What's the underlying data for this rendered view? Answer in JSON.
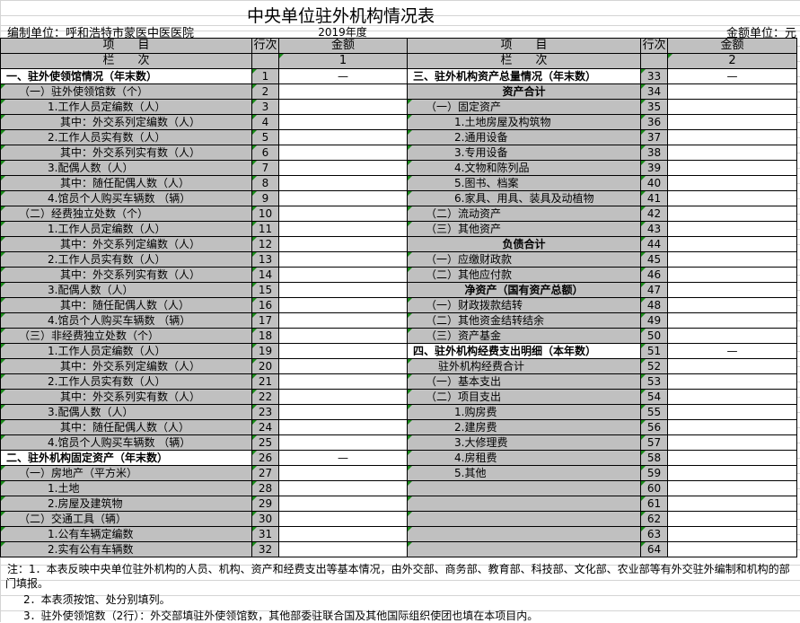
{
  "title": "中央单位驻外机构情况表",
  "compiler": "编制单位：呼和浩特市蒙医中医医院",
  "year": "2019年度",
  "money_unit": "金额单位：元",
  "header": {
    "item": "项　　目",
    "row_no": "行次",
    "amount": "金额",
    "column_label": "栏　　次",
    "left_col_no": "1",
    "right_col_no": "2"
  },
  "left_rows": [
    {
      "item": "一、驻外使领馆情况（年末数）",
      "level": 0,
      "bold": true,
      "no": "1",
      "amount": "—"
    },
    {
      "item": "（一）驻外使领馆数（个）",
      "level": 1,
      "no": "2",
      "amount": ""
    },
    {
      "item": "1.工作人员定编数（人）",
      "level": 2,
      "no": "3",
      "amount": ""
    },
    {
      "item": "其中：外交系列定编数（人）",
      "level": 3,
      "no": "4",
      "amount": ""
    },
    {
      "item": "2.工作人员实有数（人）",
      "level": 2,
      "no": "5",
      "amount": ""
    },
    {
      "item": "其中：外交系列实有数（人）",
      "level": 3,
      "no": "6",
      "amount": ""
    },
    {
      "item": "3.配偶人数（人）",
      "level": 2,
      "no": "7",
      "amount": ""
    },
    {
      "item": "其中：随任配偶人数（人）",
      "level": 3,
      "no": "8",
      "amount": ""
    },
    {
      "item": "4.馆员个人购买车辆数 （辆）",
      "level": 2,
      "no": "9",
      "amount": ""
    },
    {
      "item": "（二）经费独立处数（个）",
      "level": 1,
      "no": "10",
      "amount": ""
    },
    {
      "item": "1.工作人员定编数（人）",
      "level": 2,
      "no": "11",
      "amount": ""
    },
    {
      "item": "其中：外交系列定编数（人）",
      "level": 3,
      "no": "12",
      "amount": ""
    },
    {
      "item": "2.工作人员实有数（人）",
      "level": 2,
      "no": "13",
      "amount": ""
    },
    {
      "item": "其中：外交系列实有数（人）",
      "level": 3,
      "no": "14",
      "amount": ""
    },
    {
      "item": "3.配偶人数（人）",
      "level": 2,
      "no": "15",
      "amount": ""
    },
    {
      "item": "其中：随任配偶人数（人）",
      "level": 3,
      "no": "16",
      "amount": ""
    },
    {
      "item": "4.馆员个人购买车辆数 （辆）",
      "level": 2,
      "no": "17",
      "amount": ""
    },
    {
      "item": "（三）非经费独立处数（个）",
      "level": 1,
      "no": "18",
      "amount": ""
    },
    {
      "item": "1.工作人员定编数（人）",
      "level": 2,
      "no": "19",
      "amount": ""
    },
    {
      "item": "其中：外交系列定编数（人）",
      "level": 3,
      "no": "20",
      "amount": ""
    },
    {
      "item": "2.工作人员实有数（人）",
      "level": 2,
      "no": "21",
      "amount": ""
    },
    {
      "item": "其中：外交系列实有数（人）",
      "level": 3,
      "no": "22",
      "amount": ""
    },
    {
      "item": "3.配偶人数（人）",
      "level": 2,
      "no": "23",
      "amount": ""
    },
    {
      "item": "其中：随任配偶人数（人）",
      "level": 3,
      "no": "24",
      "amount": ""
    },
    {
      "item": "4.馆员个人购买车辆数 （辆）",
      "level": 2,
      "no": "25",
      "amount": ""
    },
    {
      "item": "二、驻外机构固定资产（年末数）",
      "level": 0,
      "bold": true,
      "no": "26",
      "amount": "—"
    },
    {
      "item": "（一）房地产（平方米）",
      "level": 1,
      "no": "27",
      "amount": ""
    },
    {
      "item": "1.土地",
      "level": 2,
      "no": "28",
      "amount": ""
    },
    {
      "item": "2.房屋及建筑物",
      "level": 2,
      "no": "29",
      "amount": ""
    },
    {
      "item": "（二）交通工具（辆）",
      "level": 1,
      "no": "30",
      "amount": ""
    },
    {
      "item": "1.公有车辆定编数",
      "level": 2,
      "no": "31",
      "amount": ""
    },
    {
      "item": "2.实有公有车辆数",
      "level": 2,
      "no": "32",
      "amount": ""
    }
  ],
  "right_rows": [
    {
      "item": "三、驻外机构资产总量情况（年末数）",
      "level": 0,
      "bold": true,
      "no": "33",
      "amount": "—"
    },
    {
      "item": "资产合计",
      "level": "center",
      "bold": true,
      "no": "34",
      "amount": ""
    },
    {
      "item": "（一）固定资产",
      "level": 1,
      "no": "35",
      "amount": ""
    },
    {
      "item": "1.土地房屋及构筑物",
      "level": 2,
      "no": "36",
      "amount": ""
    },
    {
      "item": "2.通用设备",
      "level": 2,
      "no": "37",
      "amount": ""
    },
    {
      "item": "3.专用设备",
      "level": 2,
      "no": "38",
      "amount": ""
    },
    {
      "item": "4.文物和陈列品",
      "level": 2,
      "no": "39",
      "amount": ""
    },
    {
      "item": "5.图书、档案",
      "level": 2,
      "no": "40",
      "amount": ""
    },
    {
      "item": "6.家具、用具、装具及动植物",
      "level": 2,
      "no": "41",
      "amount": ""
    },
    {
      "item": "（二）流动资产",
      "level": 1,
      "no": "42",
      "amount": ""
    },
    {
      "item": "（三）其他资产",
      "level": 1,
      "no": "43",
      "amount": ""
    },
    {
      "item": "负债合计",
      "level": "center",
      "bold": true,
      "no": "44",
      "amount": ""
    },
    {
      "item": "（一）应缴财政款",
      "level": 1,
      "no": "45",
      "amount": ""
    },
    {
      "item": "（二）其他应付款",
      "level": 1,
      "no": "46",
      "amount": ""
    },
    {
      "item": "净资产（国有资产总额）",
      "level": "center",
      "bold": true,
      "no": "47",
      "amount": ""
    },
    {
      "item": "（一）财政拨款结转",
      "level": 1,
      "no": "48",
      "amount": ""
    },
    {
      "item": "（二）其他资金结转结余",
      "level": 1,
      "no": "49",
      "amount": ""
    },
    {
      "item": "（三）资产基金",
      "level": 1,
      "no": "50",
      "amount": ""
    },
    {
      "item": "四、驻外机构经费支出明细（本年数）",
      "level": 0,
      "bold": true,
      "no": "51",
      "amount": "—"
    },
    {
      "item": "驻外机构经费合计",
      "level": "sub",
      "no": "52",
      "amount": ""
    },
    {
      "item": "（一）基本支出",
      "level": 1,
      "no": "53",
      "amount": ""
    },
    {
      "item": "（二）项目支出",
      "level": 1,
      "no": "54",
      "amount": ""
    },
    {
      "item": "1.购房费",
      "level": 2,
      "no": "55",
      "amount": ""
    },
    {
      "item": "2.建房费",
      "level": 2,
      "no": "56",
      "amount": ""
    },
    {
      "item": "3.大修理费",
      "level": 2,
      "no": "57",
      "amount": ""
    },
    {
      "item": "4.房租费",
      "level": 2,
      "no": "58",
      "amount": ""
    },
    {
      "item": "5.其他",
      "level": 2,
      "no": "59",
      "amount": ""
    },
    {
      "item": "",
      "level": 1,
      "no": "60",
      "amount": ""
    },
    {
      "item": "",
      "level": 1,
      "no": "61",
      "amount": ""
    },
    {
      "item": "",
      "level": 1,
      "no": "62",
      "amount": ""
    },
    {
      "item": "",
      "level": 1,
      "no": "63",
      "amount": ""
    },
    {
      "item": "",
      "level": 1,
      "no": "64",
      "amount": ""
    }
  ],
  "notes": [
    "注：1．本表反映中央单位驻外机构的人员、机构、资产和经费支出等基本情况，由外交部、商务部、教育部、科技部、文化部、农业部等有外交驻外编制和机构的部",
    "门填报。",
    "　2．本表须按馆、处分别填列。",
    "　3．驻外使领馆数（2行）：外交部填驻外使领馆数，其他部委驻联合国及其他国际组织使团也填在本项目内。"
  ],
  "colors": {
    "header_bg": "#c0c0c0",
    "marker": "#1a8a1a",
    "gridline": "#d4d4d4"
  }
}
